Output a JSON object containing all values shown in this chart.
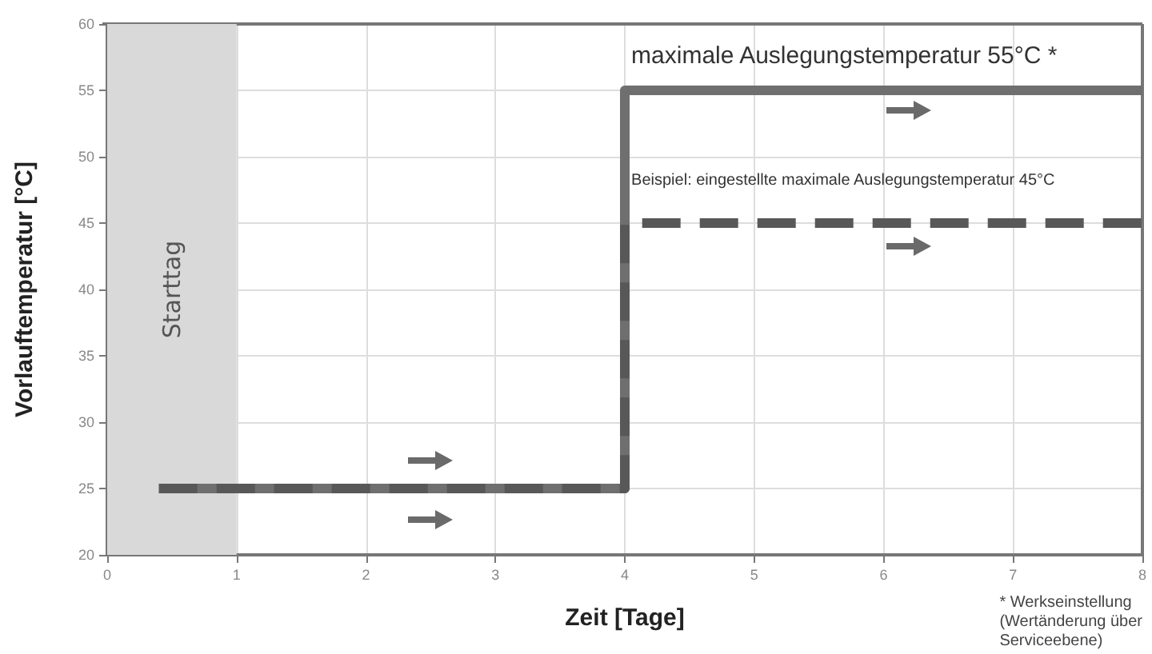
{
  "chart_data": {
    "type": "step",
    "xlabel": "Zeit [Tage]",
    "ylabel": "Vorlauftemperatur [°C]",
    "xlim": [
      0,
      8
    ],
    "xticks": [
      0,
      1,
      2,
      3,
      4,
      5,
      6,
      7,
      8
    ],
    "ylim": [
      20,
      60
    ],
    "yticks": [
      20,
      25,
      30,
      35,
      40,
      45,
      50,
      55,
      60
    ],
    "grid": true,
    "marker": "none",
    "series": [
      {
        "color": "#6f6f6f",
        "x": [
          0.4,
          4,
          8
        ],
        "values": [
          25,
          55,
          55
        ],
        "line_style": "solid"
      },
      {
        "color": "#585858",
        "x": [
          0.4,
          4,
          8
        ],
        "values": [
          25,
          45,
          45
        ],
        "line_style": "dashed"
      }
    ],
    "bands": [
      {
        "axis": "x",
        "from": 0,
        "to": 1,
        "label": "Starttag",
        "color": "#d9d9d9"
      }
    ],
    "annotations": [
      "maximale Auslegungstemperatur 55°C *",
      "Beispiel: eingestellte maximale Auslegungstemperatur 45°C",
      "* Werkseinstellung\n(Wertänderung über\nServiceebene)"
    ]
  }
}
